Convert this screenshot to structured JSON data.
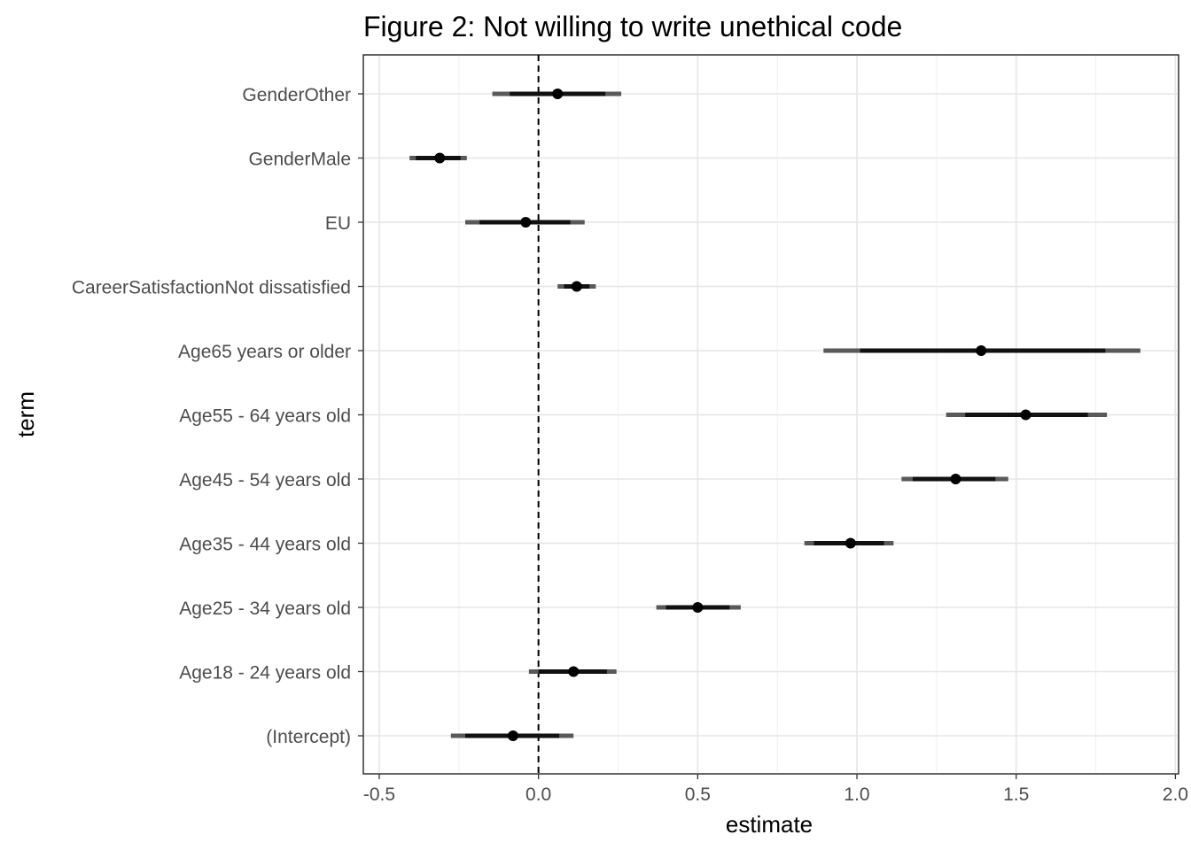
{
  "chart_data": {
    "type": "coefficient-plot",
    "title": "Figure 2: Not willing to write unethical code",
    "xlabel": "estimate",
    "ylabel": "term",
    "xlim": [
      -0.5,
      2.0
    ],
    "xticks": [
      {
        "value": -0.5,
        "label": "-0.5"
      },
      {
        "value": 0.0,
        "label": "0.0"
      },
      {
        "value": 0.5,
        "label": "0.5"
      },
      {
        "value": 1.0,
        "label": "1.0"
      },
      {
        "value": 1.5,
        "label": "1.5"
      },
      {
        "value": 2.0,
        "label": "2.0"
      }
    ],
    "reference_line": 0,
    "grid": true,
    "points": [
      {
        "term": "GenderOther",
        "estimate": 0.06,
        "ci90": [
          -0.09,
          0.21
        ],
        "ci95": [
          -0.145,
          0.26
        ]
      },
      {
        "term": "GenderMale",
        "estimate": -0.31,
        "ci90": [
          -0.385,
          -0.245
        ],
        "ci95": [
          -0.405,
          -0.225
        ]
      },
      {
        "term": "EU",
        "estimate": -0.04,
        "ci90": [
          -0.185,
          0.1
        ],
        "ci95": [
          -0.23,
          0.145
        ]
      },
      {
        "term": "CareerSatisfactionNot dissatisfied",
        "estimate": 0.12,
        "ci90": [
          0.08,
          0.16
        ],
        "ci95": [
          0.06,
          0.18
        ]
      },
      {
        "term": "Age65 years or older",
        "estimate": 1.39,
        "ci90": [
          1.01,
          1.78
        ],
        "ci95": [
          0.895,
          1.89
        ]
      },
      {
        "term": "Age55 - 64 years old",
        "estimate": 1.53,
        "ci90": [
          1.34,
          1.725
        ],
        "ci95": [
          1.28,
          1.785
        ]
      },
      {
        "term": "Age45 - 54 years old",
        "estimate": 1.31,
        "ci90": [
          1.175,
          1.435
        ],
        "ci95": [
          1.14,
          1.475
        ]
      },
      {
        "term": "Age35 - 44 years old",
        "estimate": 0.98,
        "ci90": [
          0.865,
          1.085
        ],
        "ci95": [
          0.835,
          1.115
        ]
      },
      {
        "term": "Age25 - 34 years old",
        "estimate": 0.5,
        "ci90": [
          0.4,
          0.6
        ],
        "ci95": [
          0.37,
          0.635
        ]
      },
      {
        "term": "Age18 - 24 years old",
        "estimate": 0.11,
        "ci90": [
          0.0,
          0.215
        ],
        "ci95": [
          -0.03,
          0.245
        ]
      },
      {
        "term": "(Intercept)",
        "estimate": -0.08,
        "ci90": [
          -0.23,
          0.065
        ],
        "ci95": [
          -0.275,
          0.11
        ]
      }
    ]
  }
}
